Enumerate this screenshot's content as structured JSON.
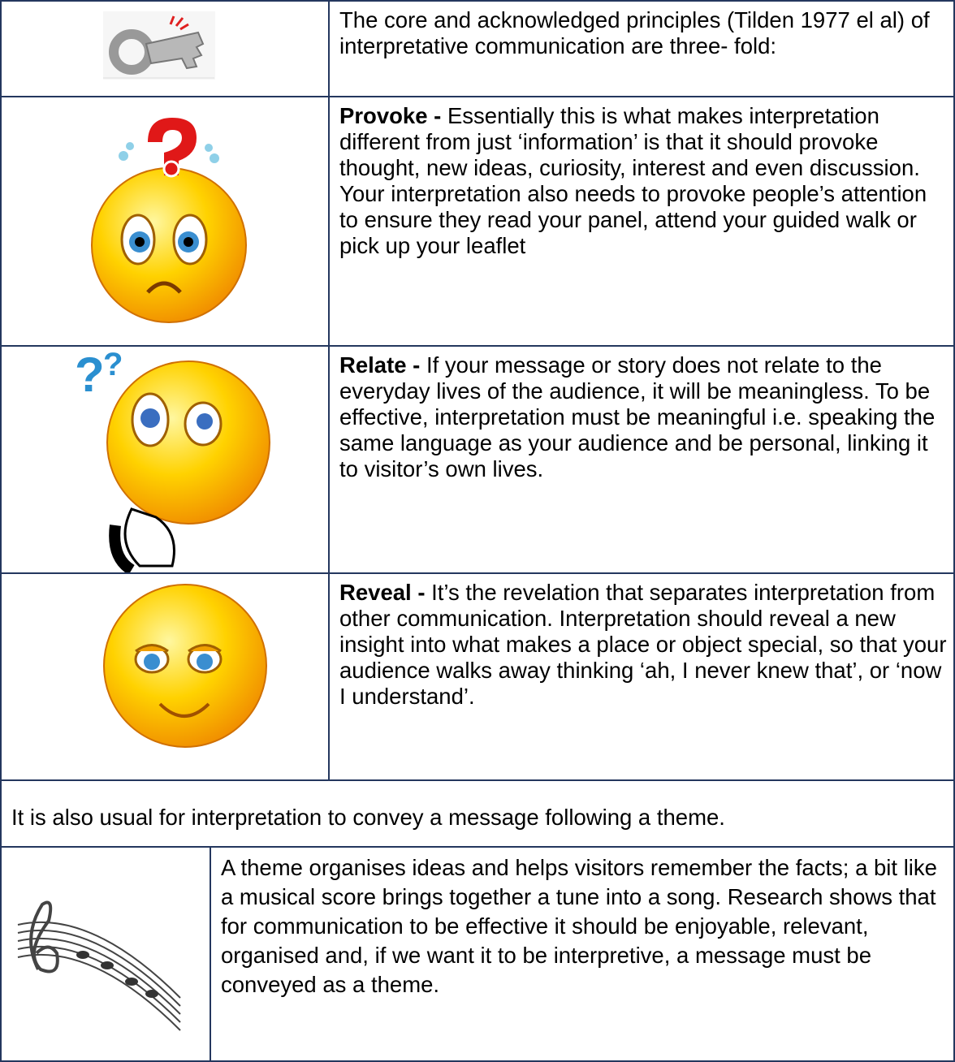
{
  "table": {
    "rows": [
      {
        "text": "The core and acknowledged principles (Tilden 1977 el al) of interpretative communication are three- fold:"
      },
      {
        "term": "Provoke -",
        "text": "Essentially this is what makes interpretation different from just ‘information’ is that it should provoke thought, new ideas, curiosity, interest and even discussion. Your interpretation also needs to provoke people’s attention to ensure they read your panel, attend your guided walk or pick up your leaflet"
      },
      {
        "term": "Relate -",
        "text": "If your message or story does not relate to the everyday lives of the audience, it will be meaningless. To be effective, interpretation must be meaningful i.e. speaking the same language as your audience and be personal, linking it to visitor’s own lives."
      },
      {
        "term": "Reveal -",
        "text": "It’s the revelation that separates interpretation from other communication. Interpretation should reveal a new insight into what makes a place or object special, so that your audience walks away thinking ‘ah, I never knew that’, or ‘now I understand’."
      }
    ],
    "note": "It is also usual for interpretation to convey a message following a theme.",
    "theme": "A theme organises ideas and helps visitors remember the facts; a bit like a musical score brings together a tune into a song. Research shows that for communication to be effective it should be enjoyable, relevant, organised and, if we want it to be interpretive, a message must be conveyed as a theme."
  }
}
